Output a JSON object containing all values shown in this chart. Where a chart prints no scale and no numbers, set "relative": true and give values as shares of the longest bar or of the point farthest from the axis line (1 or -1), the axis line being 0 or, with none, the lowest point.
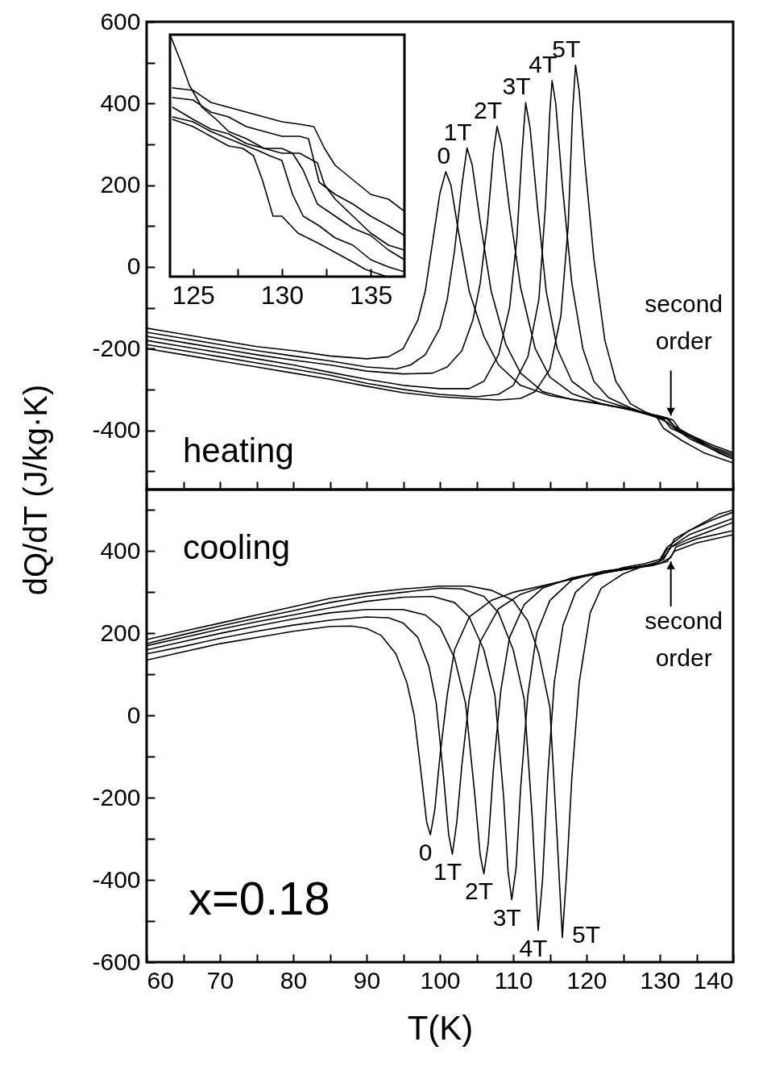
{
  "chart_data": [
    {
      "type": "line",
      "ylabel": "dQ/dT (J/kg·K)",
      "xlim": [
        60,
        140
      ],
      "ylim": [
        -545,
        600
      ],
      "tick_labels": "y",
      "xticks": [
        60,
        {
          "value": 65,
          "label": null
        },
        70,
        {
          "value": 75,
          "label": null
        },
        80,
        {
          "value": 85,
          "label": null
        },
        90,
        {
          "value": 95,
          "label": null
        },
        100,
        {
          "value": 105,
          "label": null
        },
        110,
        {
          "value": 115,
          "label": null
        },
        120,
        {
          "value": 125,
          "label": null
        },
        130,
        {
          "value": 135,
          "label": null
        },
        140
      ],
      "yticks": [
        {
          "value": -500,
          "label": null
        },
        -400,
        {
          "value": -300,
          "label": null
        },
        -200,
        {
          "value": -100,
          "label": null
        },
        0,
        {
          "value": 100,
          "label": null
        },
        200,
        {
          "value": 300,
          "label": null
        },
        400,
        {
          "value": 500,
          "label": null
        },
        600
      ],
      "annotations": [
        "heating",
        {
          "text": "second order",
          "x": 131.5,
          "y": -372
        }
      ],
      "series": [
        {
          "name": "0",
          "color": "#000000",
          "x": [
            60,
            65,
            70,
            75,
            80,
            85,
            90,
            93,
            95,
            97,
            98,
            99,
            100,
            100.8,
            101.5,
            102.5,
            104,
            106,
            108,
            111,
            115,
            120,
            125,
            128,
            130,
            131,
            132,
            134,
            137,
            140
          ],
          "values": [
            -150,
            -165,
            -180,
            -195,
            -205,
            -218,
            -225,
            -220,
            -200,
            -130,
            -60,
            60,
            180,
            233,
            200,
            90,
            -60,
            -170,
            -240,
            -290,
            -315,
            -330,
            -345,
            -358,
            -372,
            -380,
            -395,
            -420,
            -445,
            -470
          ]
        },
        {
          "name": "1T",
          "color": "#000000",
          "x": [
            60,
            65,
            70,
            75,
            80,
            85,
            90,
            94,
            96,
            98,
            100,
            101,
            102,
            103,
            103.7,
            104.4,
            105.5,
            107,
            109,
            111,
            114,
            118,
            122,
            126,
            129,
            130.5,
            131.5,
            134,
            137,
            140
          ],
          "values": [
            -160,
            -175,
            -190,
            -205,
            -218,
            -230,
            -245,
            -250,
            -240,
            -215,
            -150,
            -80,
            40,
            200,
            291,
            250,
            110,
            -60,
            -190,
            -260,
            -305,
            -325,
            -335,
            -350,
            -365,
            -372,
            -395,
            -415,
            -440,
            -460
          ]
        },
        {
          "name": "2T",
          "color": "#000000",
          "x": [
            60,
            65,
            70,
            75,
            80,
            85,
            90,
            95,
            99,
            101,
            103,
            104.5,
            105.5,
            106.5,
            107.3,
            107.8,
            108.4,
            109.5,
            111,
            113,
            115,
            118,
            122,
            126,
            129,
            131,
            132,
            134,
            137,
            140
          ],
          "values": [
            -170,
            -185,
            -200,
            -215,
            -228,
            -240,
            -255,
            -262,
            -260,
            -245,
            -205,
            -130,
            -40,
            110,
            280,
            344,
            300,
            140,
            -50,
            -200,
            -270,
            -310,
            -335,
            -350,
            -362,
            -370,
            -390,
            -410,
            -435,
            -455
          ]
        },
        {
          "name": "3T",
          "color": "#000000",
          "x": [
            60,
            65,
            70,
            75,
            80,
            85,
            90,
            95,
            100,
            104,
            106,
            108,
            109.5,
            110.5,
            111.2,
            111.7,
            112.3,
            113.3,
            114.5,
            116,
            118,
            121,
            125,
            128,
            130,
            131.8,
            132.8,
            135,
            138,
            140
          ],
          "values": [
            -180,
            -195,
            -210,
            -225,
            -240,
            -258,
            -275,
            -290,
            -298,
            -298,
            -280,
            -215,
            -100,
            70,
            280,
            402,
            340,
            150,
            -60,
            -200,
            -280,
            -320,
            -342,
            -358,
            -365,
            -375,
            -400,
            -420,
            -450,
            -465
          ]
        },
        {
          "name": "4T",
          "color": "#000000",
          "x": [
            60,
            65,
            70,
            75,
            80,
            85,
            90,
            95,
            100,
            105,
            108,
            110,
            112,
            113.5,
            114.4,
            115,
            115.3,
            115.8,
            116.7,
            118,
            119.5,
            121,
            123,
            126,
            129,
            131,
            132.2,
            135,
            138,
            140
          ],
          "values": [
            -190,
            -205,
            -220,
            -235,
            -250,
            -265,
            -285,
            -300,
            -312,
            -318,
            -312,
            -290,
            -220,
            -80,
            150,
            380,
            456,
            400,
            200,
            -40,
            -200,
            -280,
            -320,
            -345,
            -365,
            -372,
            -395,
            -425,
            -455,
            -470
          ]
        },
        {
          "name": "5T",
          "color": "#000000",
          "x": [
            60,
            65,
            70,
            75,
            80,
            85,
            90,
            95,
            100,
            104,
            108,
            111,
            113,
            115,
            116.5,
            117.5,
            118.1,
            118.5,
            119,
            119.8,
            121,
            122.5,
            124,
            126,
            128,
            129.5,
            130.5,
            133,
            136,
            140
          ],
          "values": [
            -200,
            -215,
            -230,
            -245,
            -260,
            -275,
            -292,
            -308,
            -318,
            -322,
            -326,
            -322,
            -305,
            -250,
            -120,
            100,
            380,
            494,
            430,
            250,
            20,
            -180,
            -280,
            -335,
            -355,
            -365,
            -395,
            -425,
            -455,
            -480
          ]
        }
      ]
    },
    {
      "type": "line",
      "xlabel": "T(K)",
      "xlim": [
        60,
        140
      ],
      "ylim": [
        -600,
        550
      ],
      "xticks": [
        60,
        {
          "value": 65,
          "label": null
        },
        70,
        {
          "value": 75,
          "label": null
        },
        80,
        {
          "value": 85,
          "label": null
        },
        90,
        {
          "value": 95,
          "label": null
        },
        100,
        {
          "value": 105,
          "label": null
        },
        110,
        {
          "value": 115,
          "label": null
        },
        120,
        {
          "value": 125,
          "label": null
        },
        130,
        {
          "value": 135,
          "label": null
        },
        140
      ],
      "yticks": [
        -600,
        {
          "value": -500,
          "label": null
        },
        -400,
        {
          "value": -300,
          "label": null
        },
        -200,
        {
          "value": -100,
          "label": null
        },
        0,
        {
          "value": 100,
          "label": null
        },
        200,
        {
          "value": 300,
          "label": null
        },
        400,
        {
          "value": 500,
          "label": null
        }
      ],
      "annotations": [
        "cooling",
        "x=0.18",
        {
          "text": "second order",
          "x": 131.5,
          "y": 383
        }
      ],
      "series": [
        {
          "name": "0",
          "color": "#000000",
          "x": [
            60,
            65,
            70,
            75,
            80,
            85,
            88,
            90,
            92,
            94,
            95.5,
            96.5,
            97.5,
            98.2,
            98.7,
            99.3,
            100,
            101,
            102,
            104,
            107,
            110,
            115,
            120,
            125,
            129,
            131,
            132,
            135,
            140
          ],
          "values": [
            135,
            155,
            175,
            190,
            205,
            217,
            218,
            212,
            195,
            150,
            80,
            0,
            -150,
            -260,
            -290,
            -230,
            -100,
            50,
            160,
            240,
            280,
            300,
            320,
            340,
            355,
            365,
            375,
            400,
            420,
            440
          ]
        },
        {
          "name": "1T",
          "color": "#000000",
          "x": [
            60,
            65,
            70,
            75,
            80,
            85,
            90,
            93,
            95,
            97,
            98.5,
            99.5,
            100.5,
            101.2,
            101.7,
            102.3,
            103,
            104,
            105.5,
            108,
            111,
            115,
            120,
            125,
            128.5,
            130,
            131,
            134,
            137,
            140
          ],
          "values": [
            150,
            168,
            188,
            205,
            220,
            232,
            240,
            238,
            225,
            190,
            120,
            30,
            -150,
            -290,
            -337,
            -260,
            -120,
            40,
            180,
            260,
            295,
            320,
            340,
            355,
            365,
            375,
            405,
            430,
            450,
            470
          ]
        },
        {
          "name": "2T",
          "color": "#000000",
          "x": [
            60,
            65,
            70,
            75,
            80,
            85,
            90,
            95,
            98,
            100,
            102,
            103.5,
            104.8,
            105.5,
            106,
            106.6,
            107.3,
            108.3,
            109.5,
            111.5,
            114,
            118,
            122,
            126,
            130,
            131.5,
            132.2,
            135,
            140
          ],
          "values": [
            160,
            180,
            200,
            218,
            235,
            250,
            258,
            258,
            245,
            215,
            140,
            30,
            -200,
            -340,
            -385,
            -310,
            -130,
            60,
            190,
            270,
            310,
            335,
            350,
            360,
            370,
            385,
            410,
            430,
            450
          ]
        },
        {
          "name": "3T",
          "color": "#000000",
          "x": [
            60,
            65,
            70,
            75,
            80,
            85,
            90,
            95,
            99,
            102,
            104,
            106,
            107.5,
            108.7,
            109.3,
            109.8,
            110.4,
            111,
            112,
            113.2,
            115,
            118,
            122,
            126,
            129,
            130.5,
            131.5,
            134,
            137,
            140
          ],
          "values": [
            170,
            190,
            210,
            228,
            245,
            262,
            278,
            288,
            290,
            275,
            240,
            160,
            50,
            -200,
            -380,
            -448,
            -370,
            -180,
            50,
            200,
            280,
            330,
            350,
            360,
            368,
            380,
            410,
            440,
            460,
            480
          ]
        },
        {
          "name": "4T",
          "color": "#000000",
          "x": [
            60,
            65,
            70,
            75,
            80,
            85,
            90,
            95,
            100,
            103,
            106,
            108,
            110,
            111.5,
            112.6,
            113.4,
            114,
            114.7,
            115.6,
            116.8,
            118.5,
            121,
            125,
            128,
            130,
            131,
            134,
            137,
            140
          ],
          "values": [
            175,
            197,
            218,
            237,
            255,
            275,
            290,
            300,
            310,
            308,
            290,
            250,
            160,
            40,
            -250,
            -523,
            -400,
            -150,
            80,
            220,
            300,
            340,
            360,
            370,
            380,
            410,
            450,
            475,
            495
          ]
        },
        {
          "name": "5T",
          "color": "#000000",
          "x": [
            60,
            65,
            70,
            75,
            80,
            85,
            90,
            95,
            100,
            104,
            107,
            110,
            112,
            113.5,
            115,
            116,
            116.7,
            117.3,
            118,
            119,
            120.5,
            122,
            125,
            128,
            130,
            131,
            132,
            135,
            138,
            140
          ],
          "values": [
            185,
            205,
            225,
            245,
            265,
            285,
            298,
            308,
            315,
            315,
            305,
            280,
            230,
            150,
            20,
            -300,
            -540,
            -380,
            -150,
            80,
            250,
            310,
            345,
            365,
            375,
            395,
            430,
            460,
            490,
            500
          ]
        }
      ]
    },
    {
      "type": "line",
      "relative": true,
      "xlim": [
        123.7,
        136.9
      ],
      "xticks": [
        125,
        {
          "value": 127.5,
          "label": null
        },
        130,
        {
          "value": 132.5,
          "label": null
        },
        135
      ],
      "series": [
        {
          "color": "#000000",
          "x": [
            123.85,
            125,
            126,
            127,
            128,
            129,
            130,
            131,
            131.8,
            132.4,
            133,
            134,
            135,
            136,
            136.9
          ],
          "values": [
            0.78,
            0.77,
            0.72,
            0.7,
            0.68,
            0.66,
            0.64,
            0.63,
            0.62,
            0.53,
            0.46,
            0.4,
            0.34,
            0.32,
            0.27
          ]
        },
        {
          "color": "#000000",
          "x": [
            123.85,
            125,
            126,
            127,
            128,
            129,
            130,
            131,
            131.5,
            132.1,
            133,
            134,
            135,
            136,
            136.9
          ],
          "values": [
            0.74,
            0.73,
            0.68,
            0.66,
            0.62,
            0.6,
            0.58,
            0.58,
            0.57,
            0.39,
            0.34,
            0.3,
            0.25,
            0.21,
            0.17
          ]
        },
        {
          "color": "#000000",
          "x": [
            123.7,
            124.3,
            124.8,
            125.5,
            126.3,
            127,
            128,
            129,
            130,
            131,
            132,
            132.4,
            133,
            134,
            135,
            136,
            136.9
          ],
          "values": [
            1,
            0.89,
            0.79,
            0.7,
            0.65,
            0.6,
            0.57,
            0.53,
            0.51,
            0.51,
            0.47,
            0.38,
            0.32,
            0.25,
            0.18,
            0.13,
            0.11
          ]
        },
        {
          "color": "#000000",
          "x": [
            123.85,
            125,
            126,
            127,
            128,
            129,
            130,
            130.6,
            131.2,
            132,
            133,
            134,
            135,
            136,
            136.9
          ],
          "values": [
            0.7,
            0.65,
            0.61,
            0.59,
            0.55,
            0.53,
            0.53,
            0.51,
            0.44,
            0.3,
            0.25,
            0.2,
            0.17,
            0.11,
            0.07
          ]
        },
        {
          "color": "#000000",
          "x": [
            123.85,
            125,
            126,
            127,
            128,
            128.7,
            129.3,
            130,
            130.6,
            131.2,
            132.1,
            133,
            134,
            135,
            136,
            136.9
          ],
          "values": [
            0.66,
            0.64,
            0.6,
            0.57,
            0.54,
            0.52,
            0.5,
            0.48,
            0.34,
            0.25,
            0.21,
            0.16,
            0.13,
            0.07,
            0.04,
            0.02
          ]
        },
        {
          "color": "#000000",
          "x": [
            123.85,
            125,
            126,
            127,
            127.8,
            128.4,
            128.9,
            129.5,
            130,
            130.9,
            132,
            133,
            134,
            134.7,
            135.9
          ],
          "values": [
            0.65,
            0.62,
            0.58,
            0.54,
            0.53,
            0.5,
            0.4,
            0.25,
            0.25,
            0.18,
            0.14,
            0.1,
            0.06,
            0.03,
            0
          ]
        }
      ]
    }
  ]
}
